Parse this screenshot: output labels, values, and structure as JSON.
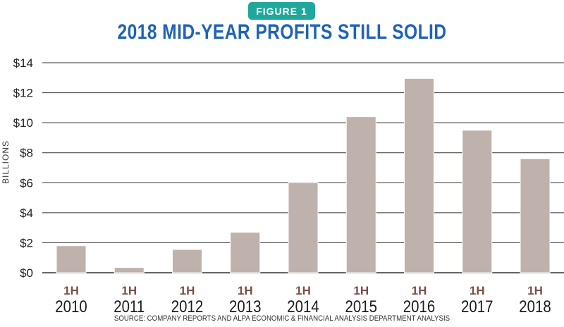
{
  "badge": "FIGURE 1",
  "title": "2018 MID-YEAR PROFITS STILL SOLID",
  "source": "SOURCE: COMPANY REPORTS AND ALPA ECONOMIC & FINANCIAL ANALYSIS DEPARTMENT ANALYSIS",
  "colors": {
    "bar": "#bfb1ac",
    "bar_edge": "#ffffff",
    "grid": "#333333",
    "tick_prefix": "#7a4e48",
    "tick_year": "#1a1a1a",
    "title": "#1f63b5",
    "badge": "#1fa89a"
  },
  "chart_data": {
    "type": "bar",
    "title": "2018 MID-YEAR PROFITS STILL SOLID",
    "ylabel": "BILLIONS",
    "xlabel": "",
    "categories": [
      {
        "prefix": "1H",
        "year": "2010"
      },
      {
        "prefix": "1H",
        "year": "2011"
      },
      {
        "prefix": "1H",
        "year": "2012"
      },
      {
        "prefix": "1H",
        "year": "2013"
      },
      {
        "prefix": "1H",
        "year": "2014"
      },
      {
        "prefix": "1H",
        "year": "2015"
      },
      {
        "prefix": "1H",
        "year": "2016"
      },
      {
        "prefix": "1H",
        "year": "2017"
      },
      {
        "prefix": "1H",
        "year": "2018"
      }
    ],
    "values": [
      1.8,
      0.35,
      1.55,
      2.7,
      6.0,
      10.4,
      12.95,
      9.5,
      7.6
    ],
    "ylim": [
      0,
      14
    ],
    "yticks": [
      {
        "value": 0,
        "label": "$0"
      },
      {
        "value": 2,
        "label": "$2"
      },
      {
        "value": 4,
        "label": "$4"
      },
      {
        "value": 6,
        "label": "$6"
      },
      {
        "value": 8,
        "label": "$8"
      },
      {
        "value": 10,
        "label": "$10"
      },
      {
        "value": 12,
        "label": "$12"
      },
      {
        "value": 14,
        "label": "$14"
      }
    ],
    "grid": true,
    "legend": "none"
  }
}
